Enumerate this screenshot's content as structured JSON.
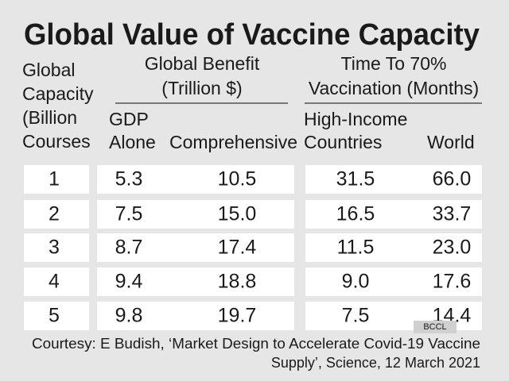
{
  "title": "Global Value of Vaccine Capacity",
  "groups": [
    {
      "lines": [
        "Global Benefit",
        "(Trillion $)"
      ]
    },
    {
      "lines": [
        "Time To 70%",
        "Vaccination (Months)"
      ]
    }
  ],
  "columns": [
    [
      "Global",
      "Capacity",
      "(Billion",
      "Courses"
    ],
    [
      "GDP",
      "Alone"
    ],
    [
      "Comprehensive"
    ],
    [
      "High-Income",
      "Countries"
    ],
    [
      "World"
    ]
  ],
  "rows": [
    [
      "1",
      "5.3",
      "10.5",
      "31.5",
      "66.0"
    ],
    [
      "2",
      "7.5",
      "15.0",
      "16.5",
      "33.7"
    ],
    [
      "3",
      "8.7",
      "17.4",
      "11.5",
      "23.0"
    ],
    [
      "4",
      "9.4",
      "18.8",
      "9.0",
      "17.6"
    ],
    [
      "5",
      "9.8",
      "19.7",
      "7.5",
      "14.4"
    ]
  ],
  "watermark": "BCCL",
  "footnote": [
    "Courtesy: E Budish, ‘Market Design to Accelerate Covid-19 Vaccine",
    "Supply’, Science, 12 March 2021"
  ]
}
